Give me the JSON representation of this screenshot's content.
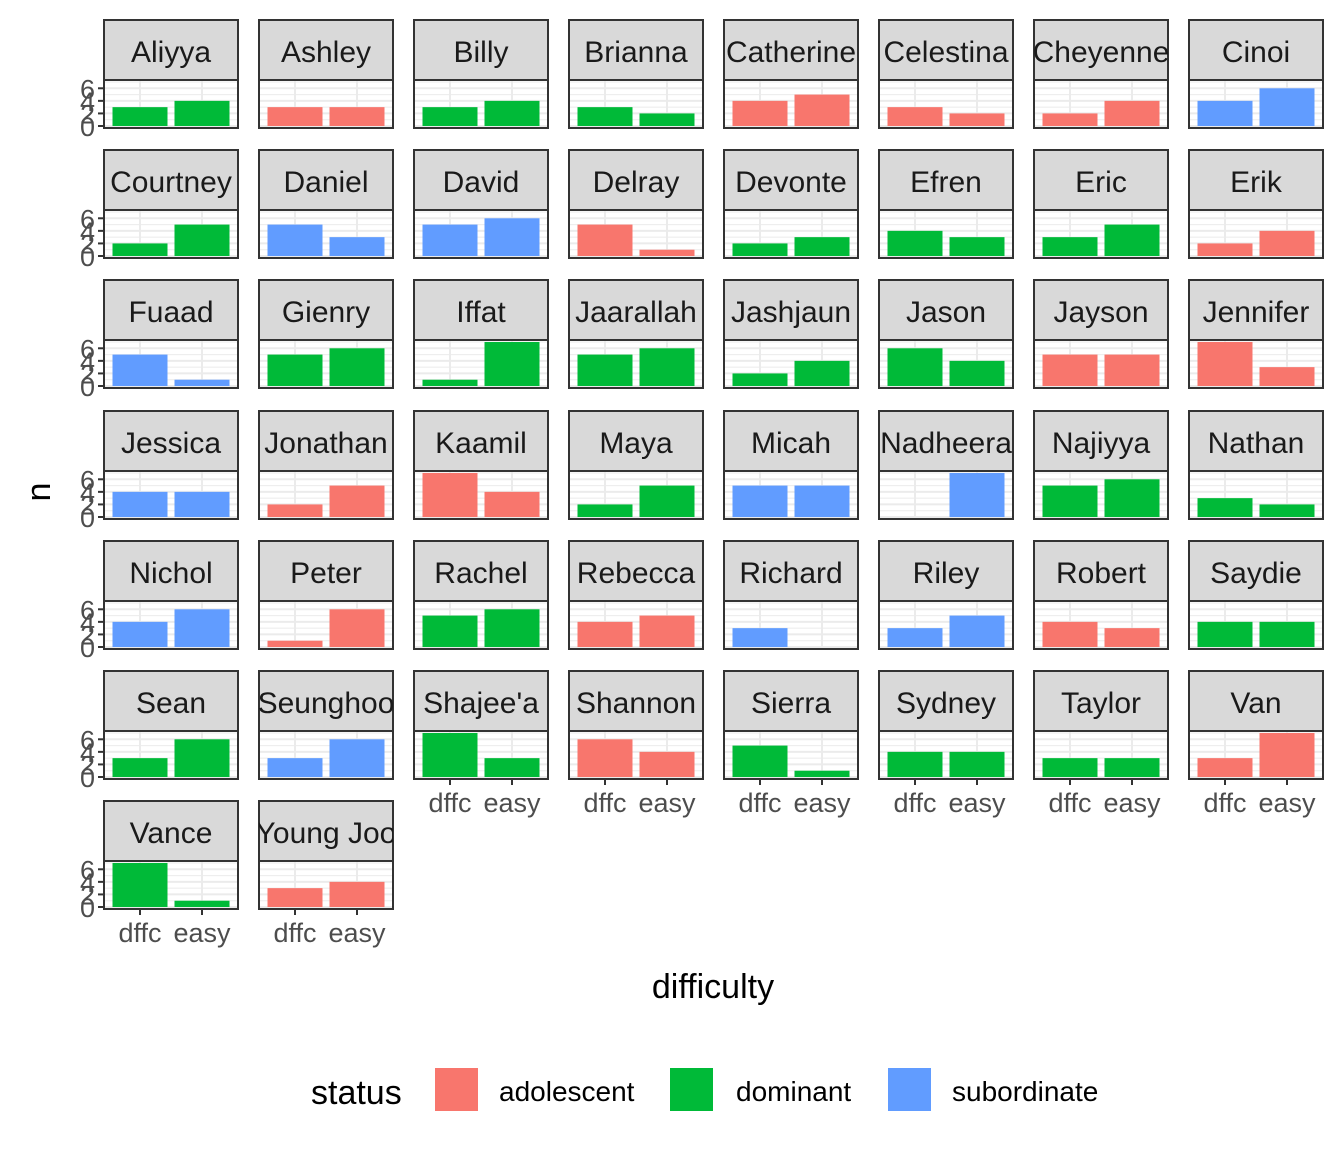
{
  "chart_data": {
    "type": "bar",
    "facet_by": "name",
    "xlabel": "difficulty",
    "ylabel": "n",
    "x_categories": [
      "difficult",
      "easy"
    ],
    "x_tick_labels": [
      "dffc",
      "easy"
    ],
    "ylim": [
      0,
      7
    ],
    "y_ticks": [
      0,
      2,
      4,
      6
    ],
    "y_tick_labels": [
      "0",
      "2",
      "4",
      "6"
    ],
    "grid": true,
    "legend": {
      "title": "status",
      "position": "bottom",
      "entries": [
        {
          "key": "adolescent",
          "label": "adolescent",
          "color": "#F8766D"
        },
        {
          "key": "dominant",
          "label": "dominant",
          "color": "#00BA38"
        },
        {
          "key": "subordinate",
          "label": "subordinate",
          "color": "#619CFF"
        }
      ]
    },
    "panels": [
      {
        "name": "Aliyya",
        "status": "dominant",
        "values": [
          3,
          4
        ]
      },
      {
        "name": "Ashley",
        "status": "adolescent",
        "values": [
          3,
          3
        ]
      },
      {
        "name": "Billy",
        "status": "dominant",
        "values": [
          3,
          4
        ]
      },
      {
        "name": "Brianna",
        "status": "dominant",
        "values": [
          3,
          2
        ]
      },
      {
        "name": "Catherine",
        "status": "adolescent",
        "values": [
          4,
          5
        ]
      },
      {
        "name": "Celestina",
        "status": "adolescent",
        "values": [
          3,
          2
        ]
      },
      {
        "name": "Cheyenne",
        "status": "adolescent",
        "values": [
          2,
          4
        ]
      },
      {
        "name": "Cinoi",
        "status": "subordinate",
        "values": [
          4,
          6
        ]
      },
      {
        "name": "Courtney",
        "status": "dominant",
        "values": [
          2,
          5
        ]
      },
      {
        "name": "Daniel",
        "status": "subordinate",
        "values": [
          5,
          3
        ]
      },
      {
        "name": "David",
        "status": "subordinate",
        "values": [
          5,
          6
        ]
      },
      {
        "name": "Delray",
        "status": "adolescent",
        "values": [
          5,
          1
        ]
      },
      {
        "name": "Devonte",
        "status": "dominant",
        "values": [
          2,
          3
        ]
      },
      {
        "name": "Efren",
        "status": "dominant",
        "values": [
          4,
          3
        ]
      },
      {
        "name": "Eric",
        "status": "dominant",
        "values": [
          3,
          5
        ]
      },
      {
        "name": "Erik",
        "status": "adolescent",
        "values": [
          2,
          4
        ]
      },
      {
        "name": "Fuaad",
        "status": "subordinate",
        "values": [
          5,
          1
        ]
      },
      {
        "name": "Gienry",
        "status": "dominant",
        "values": [
          5,
          6
        ]
      },
      {
        "name": "Iffat",
        "status": "dominant",
        "values": [
          1,
          7
        ]
      },
      {
        "name": "Jaarallah",
        "status": "dominant",
        "values": [
          5,
          6
        ]
      },
      {
        "name": "Jashjaun",
        "status": "dominant",
        "values": [
          2,
          4
        ]
      },
      {
        "name": "Jason",
        "status": "dominant",
        "values": [
          6,
          4
        ]
      },
      {
        "name": "Jayson",
        "status": "adolescent",
        "values": [
          5,
          5
        ]
      },
      {
        "name": "Jennifer",
        "status": "adolescent",
        "values": [
          7,
          3
        ]
      },
      {
        "name": "Jessica",
        "status": "subordinate",
        "values": [
          4,
          4
        ]
      },
      {
        "name": "Jonathan",
        "status": "adolescent",
        "values": [
          2,
          5
        ]
      },
      {
        "name": "Kaamil",
        "status": "adolescent",
        "values": [
          7,
          4
        ]
      },
      {
        "name": "Maya",
        "status": "dominant",
        "values": [
          2,
          5
        ]
      },
      {
        "name": "Micah",
        "status": "subordinate",
        "values": [
          5,
          5
        ]
      },
      {
        "name": "Nadheera",
        "status": "subordinate",
        "values": [
          0,
          7
        ]
      },
      {
        "name": "Najiyya",
        "status": "dominant",
        "values": [
          5,
          6
        ]
      },
      {
        "name": "Nathan",
        "status": "dominant",
        "values": [
          3,
          2
        ]
      },
      {
        "name": "Nichol",
        "status": "subordinate",
        "values": [
          4,
          6
        ]
      },
      {
        "name": "Peter",
        "status": "adolescent",
        "values": [
          1,
          6
        ]
      },
      {
        "name": "Rachel",
        "status": "dominant",
        "values": [
          5,
          6
        ]
      },
      {
        "name": "Rebecca",
        "status": "adolescent",
        "values": [
          4,
          5
        ]
      },
      {
        "name": "Richard",
        "status": "subordinate",
        "values": [
          3,
          0
        ]
      },
      {
        "name": "Riley",
        "status": "subordinate",
        "values": [
          3,
          5
        ]
      },
      {
        "name": "Robert",
        "status": "adolescent",
        "values": [
          4,
          3
        ]
      },
      {
        "name": "Saydie",
        "status": "dominant",
        "values": [
          4,
          4
        ]
      },
      {
        "name": "Sean",
        "status": "dominant",
        "values": [
          3,
          6
        ]
      },
      {
        "name": "Seunghoo",
        "status": "subordinate",
        "values": [
          3,
          6
        ]
      },
      {
        "name": "Shajee'a",
        "status": "dominant",
        "values": [
          7,
          3
        ]
      },
      {
        "name": "Shannon",
        "status": "adolescent",
        "values": [
          6,
          4
        ]
      },
      {
        "name": "Sierra",
        "status": "dominant",
        "values": [
          5,
          1
        ]
      },
      {
        "name": "Sydney",
        "status": "dominant",
        "values": [
          4,
          4
        ]
      },
      {
        "name": "Taylor",
        "status": "dominant",
        "values": [
          3,
          3
        ]
      },
      {
        "name": "Van",
        "status": "adolescent",
        "values": [
          3,
          7
        ]
      },
      {
        "name": "Vance",
        "status": "dominant",
        "values": [
          7,
          1
        ]
      },
      {
        "name": "Young Joo",
        "status": "adolescent",
        "values": [
          3,
          4
        ]
      }
    ]
  }
}
